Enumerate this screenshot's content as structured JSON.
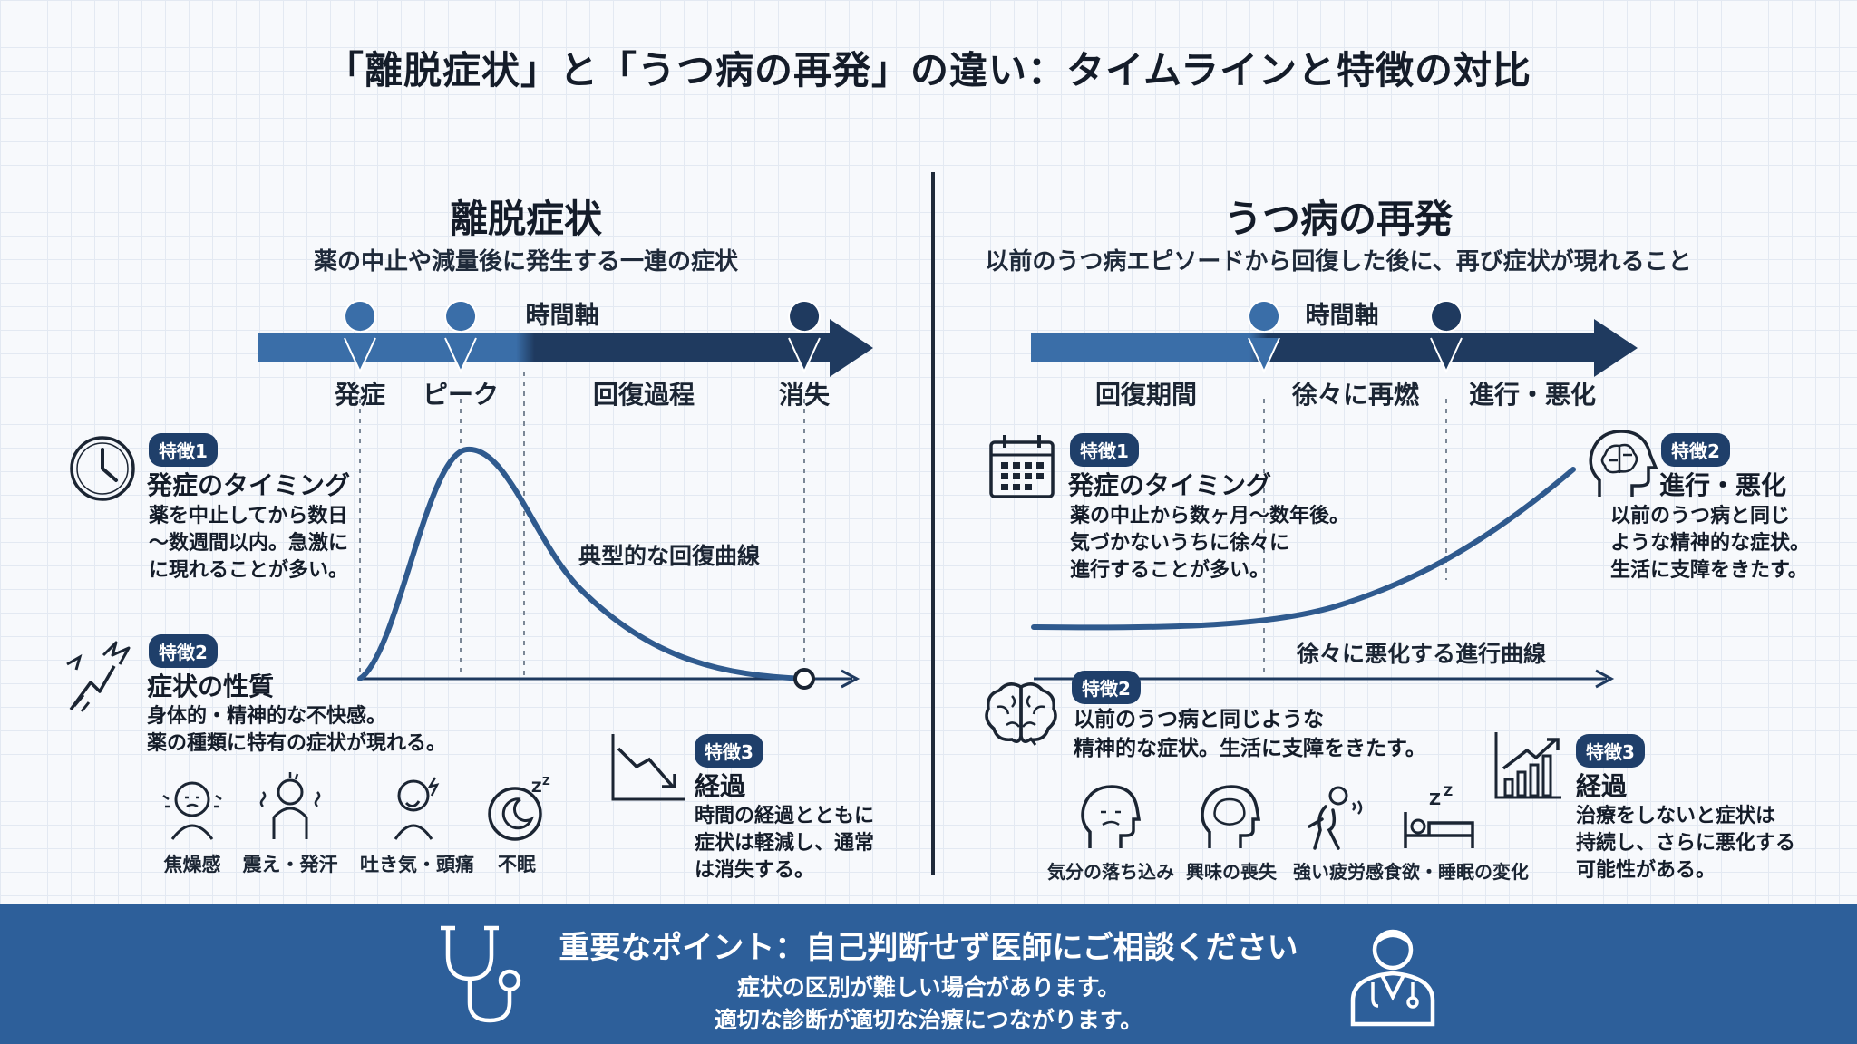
{
  "title": "「離脱症状」と「うつ病の再発」の違い：タイムラインと特徴の対比",
  "left": {
    "title": "離脱症状",
    "subtitle": "薬の中止や減量後に発生する一連の症状",
    "axis_label": "時間軸",
    "phases": [
      "発症",
      "ピーク",
      "回復過程",
      "消失"
    ],
    "curve_label": "典型的な回復曲線",
    "feature1": {
      "badge": "特徴1",
      "heading": "発症のタイミング",
      "text": "薬を中止してから数日\n〜数週間以内。急激に\nに現れることが多い。"
    },
    "feature2": {
      "badge": "特徴2",
      "heading": "症状の性質",
      "text": "身体的・精神的な不快感。\n薬の種類に特有の症状が現れる。"
    },
    "feature3": {
      "badge": "特徴3",
      "heading": "経過",
      "text": "時間の経過とともに\n症状は軽減し、通常\nは消失する。"
    },
    "symptoms": [
      "焦燥感",
      "震え・発汗",
      "吐き気・頭痛",
      "不眠"
    ]
  },
  "right": {
    "title": "うつ病の再発",
    "subtitle": "以前のうつ病エピソードから回復した後に、再び症状が現れること",
    "axis_label": "時間軸",
    "phases": [
      "回復期間",
      "徐々に再燃",
      "進行・悪化"
    ],
    "curve_label": "徐々に悪化する進行曲線",
    "feature1": {
      "badge": "特徴1",
      "heading": "発症のタイミング",
      "text": "薬の中止から数ヶ月〜数年後。\n気づかないうちに徐々に\n進行することが多い。"
    },
    "feature2_top": {
      "badge": "特徴2",
      "heading": "進行・悪化",
      "text": "以前のうつ病と同じ\nような精神的な症状。\n生活に支障をきたす。"
    },
    "feature2": {
      "badge": "特徴2",
      "text": "以前のうつ病と同じような\n精神的な症状。生活に支障をきたす。"
    },
    "feature3": {
      "badge": "特徴3",
      "heading": "経過",
      "text": "治療をしないと症状は\n持続し、さらに悪化する\n可能性がある。"
    },
    "symptoms": [
      "気分の落ち込み",
      "興味の喪失",
      "強い疲労感",
      "食欲・睡眠の変化"
    ]
  },
  "footer": {
    "heading": "重要なポイント：自己判断せず医師にご相談ください",
    "line1": "症状の区別が難しい場合があります。",
    "line2": "適切な診断が適切な治療につながります。"
  },
  "colors": {
    "navy": "#1f3a5f",
    "blue": "#3a6ea8",
    "footer": "#2d5f9a",
    "badge": "#1f3f6a"
  }
}
